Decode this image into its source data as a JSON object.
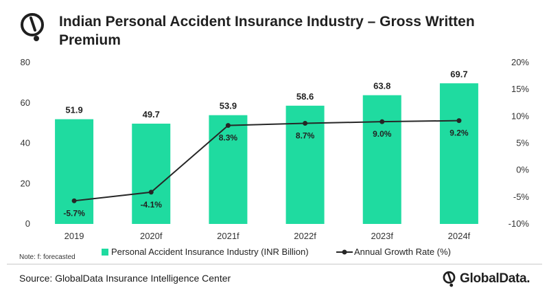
{
  "header": {
    "title": "Indian Personal Accident Insurance Industry – Gross Written Premium",
    "logo_icon": "globaldata-mark-icon"
  },
  "chart_data": {
    "type": "bar",
    "title": "Indian Personal Accident Insurance Industry – Gross Written Premium",
    "xlabel": "",
    "ylabel": "",
    "categories": [
      "2019",
      "2020f",
      "2021f",
      "2022f",
      "2023f",
      "2024f"
    ],
    "ylim": [
      0,
      80
    ],
    "yticks": [
      "0",
      "20",
      "40",
      "60",
      "80"
    ],
    "y2lim": [
      -10,
      20
    ],
    "y2ticks": [
      "-10%",
      "-5%",
      "0%",
      "5%",
      "10%",
      "15%",
      "20%"
    ],
    "series": [
      {
        "name": "Personal Accident Insurance Industry (INR Billion)",
        "type": "bar",
        "axis": "left",
        "values": [
          51.9,
          49.7,
          53.9,
          58.6,
          63.8,
          69.7
        ],
        "labels": [
          "51.9",
          "49.7",
          "53.9",
          "58.6",
          "63.8",
          "69.7"
        ]
      },
      {
        "name": "Annual Growth Rate (%)",
        "type": "line",
        "axis": "right",
        "values": [
          -5.7,
          -4.1,
          8.3,
          8.7,
          9.0,
          9.2
        ],
        "labels": [
          "-5.7%",
          "-4.1%",
          "8.3%",
          "8.7%",
          "9.0%",
          "9.2%"
        ]
      }
    ],
    "grid": false,
    "legend_position": "bottom"
  },
  "colors": {
    "bar": "#1fdba0",
    "line": "#262626",
    "text": "#1a1a1a"
  },
  "footer": {
    "note": "Note: f: forecasted",
    "source": "Source: GlobalData Insurance Intelligence Center",
    "brand": "GlobalData.",
    "brand_icon": "globaldata-mark-icon"
  }
}
